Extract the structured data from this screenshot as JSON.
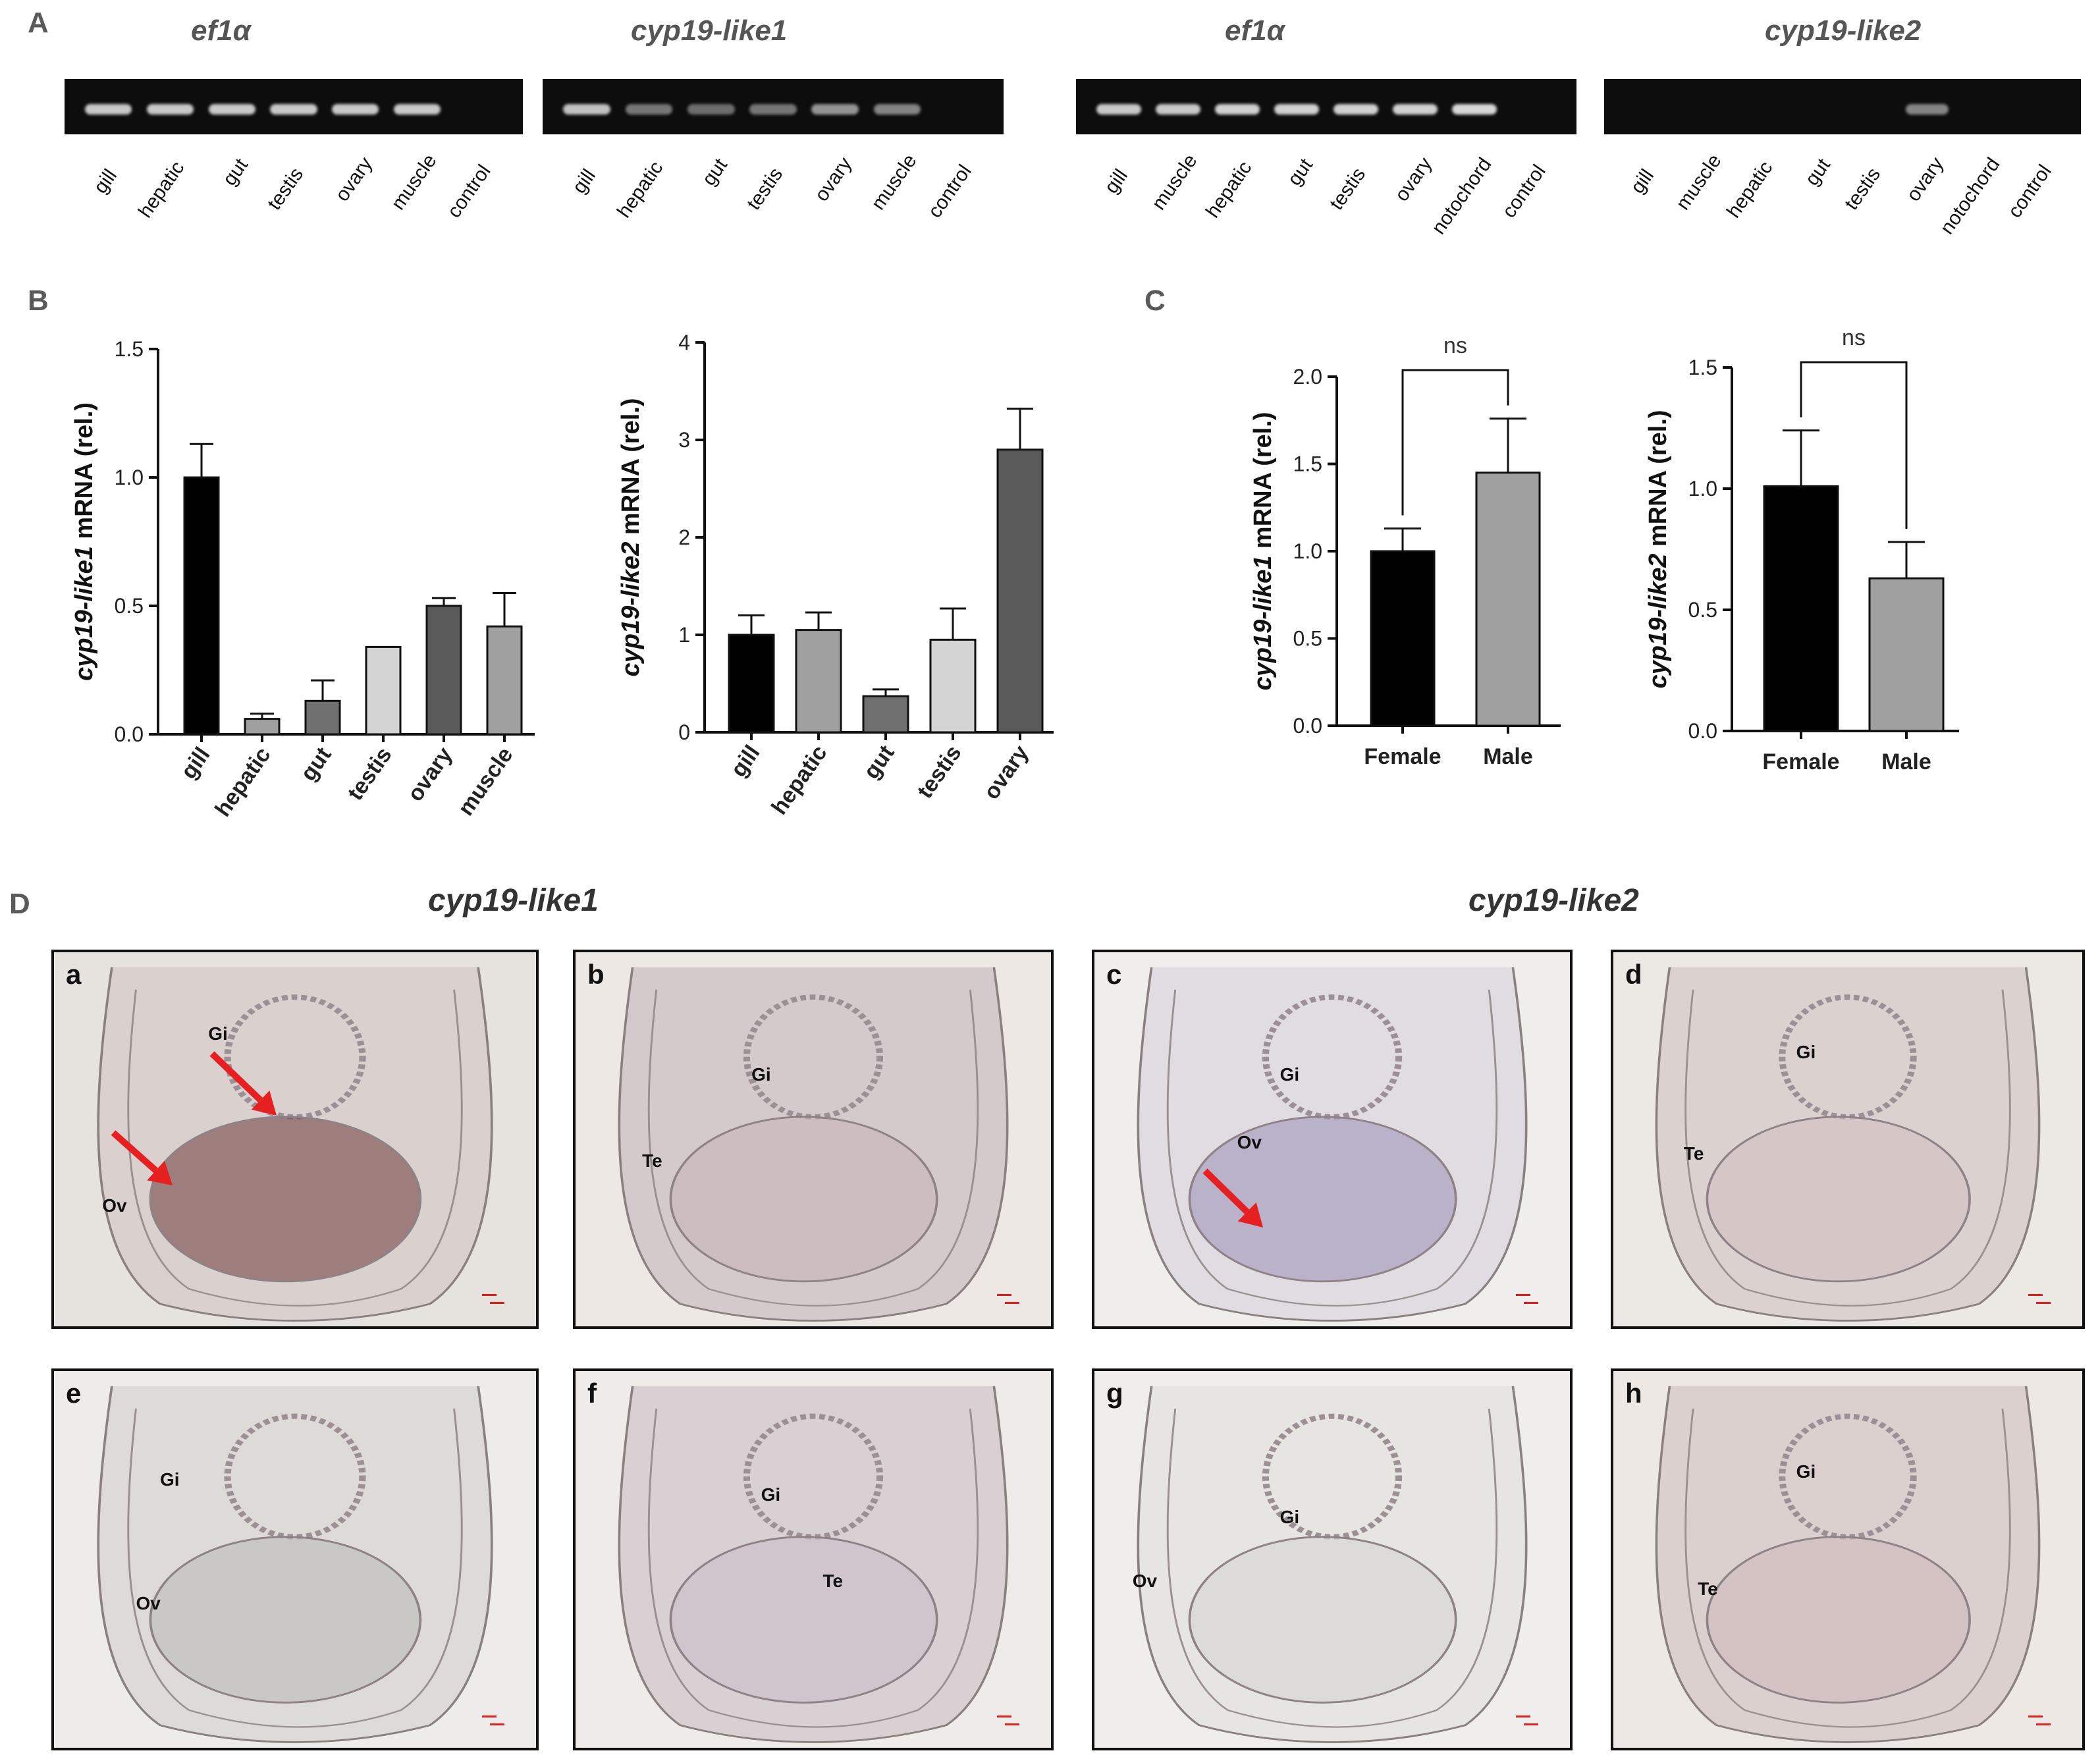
{
  "panels": {
    "A": "A",
    "B": "B",
    "C": "C",
    "D": "D"
  },
  "panel_a": {
    "gels": [
      {
        "gene": "ef1α",
        "lanes": [
          "gill",
          "hepatic",
          "gut",
          "testis",
          "ovary",
          "muscle",
          "control"
        ]
      },
      {
        "gene": "cyp19-like1",
        "lanes": [
          "gill",
          "hepatic",
          "gut",
          "testis",
          "ovary",
          "muscle",
          "control"
        ]
      },
      {
        "gene": "ef1α",
        "lanes": [
          "gill",
          "muscle",
          "hepatic",
          "gut",
          "testis",
          "ovary",
          "notochord",
          "control"
        ]
      },
      {
        "gene": "cyp19-like2",
        "lanes": [
          "gill",
          "muscle",
          "hepatic",
          "gut",
          "testis",
          "ovary",
          "notochord",
          "control"
        ]
      }
    ]
  },
  "chart_data": [
    {
      "type": "bar",
      "ylabel_gene": "cyp19-like1",
      "ylabel_rest": " mRNA (rel.)",
      "categories": [
        "gill",
        "hepatic",
        "gut",
        "testis",
        "ovary",
        "muscle"
      ],
      "values": [
        1.0,
        0.06,
        0.13,
        0.34,
        0.5,
        0.42
      ],
      "errors": [
        0.13,
        0.02,
        0.08,
        0.0,
        0.03,
        0.13
      ],
      "colors": [
        "#000000",
        "#a0a0a0",
        "#707070",
        "#d4d4d4",
        "#5a5a5a",
        "#a0a0a0"
      ],
      "ylim": [
        0,
        1.5
      ],
      "ticks": [
        "0.0",
        "0.5",
        "1.0",
        "1.5"
      ]
    },
    {
      "type": "bar",
      "ylabel_gene": "cyp19-like2",
      "ylabel_rest": " mRNA (rel.)",
      "categories": [
        "gill",
        "hepatic",
        "gut",
        "testis",
        "ovary"
      ],
      "values": [
        1.0,
        1.05,
        0.37,
        0.95,
        2.9
      ],
      "errors": [
        0.2,
        0.18,
        0.07,
        0.32,
        0.42
      ],
      "colors": [
        "#000000",
        "#a0a0a0",
        "#707070",
        "#d4d4d4",
        "#5a5a5a"
      ],
      "ylim": [
        0,
        4
      ],
      "ticks": [
        "0",
        "1",
        "2",
        "3",
        "4"
      ]
    },
    {
      "type": "bar",
      "ylabel_gene": "cyp19-like1",
      "ylabel_rest": " mRNA (rel.)",
      "categories": [
        "Female",
        "Male"
      ],
      "values": [
        1.0,
        1.45
      ],
      "errors": [
        0.13,
        0.31
      ],
      "colors": [
        "#000000",
        "#a0a0a0"
      ],
      "ylim": [
        0,
        2.0
      ],
      "ticks": [
        "0.0",
        "0.5",
        "1.0",
        "1.5",
        "2.0"
      ],
      "significance": "ns"
    },
    {
      "type": "bar",
      "ylabel_gene": "cyp19-like2",
      "ylabel_rest": " mRNA (rel.)",
      "categories": [
        "Female",
        "Male"
      ],
      "values": [
        1.01,
        0.63
      ],
      "errors": [
        0.23,
        0.15
      ],
      "colors": [
        "#000000",
        "#a0a0a0"
      ],
      "ylim": [
        0,
        1.5
      ],
      "ticks": [
        "0.0",
        "0.5",
        "1.0",
        "1.5"
      ],
      "significance": "ns"
    }
  ],
  "panel_d": {
    "genes": [
      "cyp19-like1",
      "cyp19-like2"
    ],
    "images": [
      {
        "letter": "a",
        "labels": [
          "Gi",
          "Ov"
        ]
      },
      {
        "letter": "b",
        "labels": [
          "Gi",
          "Te"
        ]
      },
      {
        "letter": "c",
        "labels": [
          "Gi",
          "Ov"
        ]
      },
      {
        "letter": "d",
        "labels": [
          "Gi",
          "Te"
        ]
      },
      {
        "letter": "e",
        "labels": [
          "Gi",
          "Ov"
        ]
      },
      {
        "letter": "f",
        "labels": [
          "Gi",
          "Te"
        ]
      },
      {
        "letter": "g",
        "labels": [
          "Gi",
          "Ov"
        ]
      },
      {
        "letter": "h",
        "labels": [
          "Gi",
          "Te"
        ]
      }
    ]
  }
}
